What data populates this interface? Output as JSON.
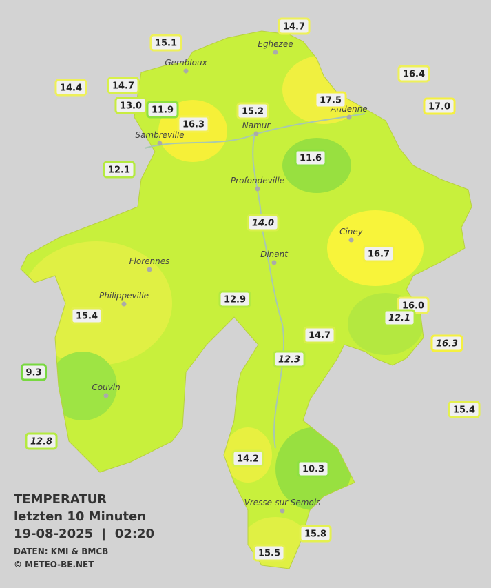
{
  "info": {
    "title": "TEMPERATUR",
    "period": "letzten 10 Minuten",
    "datetime": "19-08-2025  |  02:20",
    "source": "DATEN: KMI & BMCB",
    "copyright": "© METEO-BE.NET"
  },
  "cities": [
    "Eghezee",
    "Gembloux",
    "Andenne",
    "Namur",
    "Sambreville",
    "Profondeville",
    "Ciney",
    "Dinant",
    "Florennes",
    "Philippeville",
    "Couvin",
    "Vresse-sur-Semois"
  ],
  "stations": [
    {
      "label": "14.7",
      "border": "#eef05a"
    },
    {
      "label": "15.1",
      "border": "#eef05a"
    },
    {
      "label": "16.4",
      "border": "#eef05a"
    },
    {
      "label": "14.4",
      "border": "#eef05a"
    },
    {
      "label": "14.7",
      "border": "#d8f04a"
    },
    {
      "label": "13.0",
      "border": "#c8ec40"
    },
    {
      "label": "11.9",
      "border": "#8ee040"
    },
    {
      "label": "16.3",
      "border": "#f4f050"
    },
    {
      "label": "15.2",
      "border": "#e4f050"
    },
    {
      "label": "17.5",
      "border": "#f4f040"
    },
    {
      "label": "17.0",
      "border": "#f4f040"
    },
    {
      "label": "12.1",
      "border": "#b4ea40"
    },
    {
      "label": "11.6",
      "border": "#8ee040"
    },
    {
      "label": "14.0",
      "border": "#d8f04a",
      "italic": true
    },
    {
      "label": "16.7",
      "border": "#f4f040"
    },
    {
      "label": "12.9",
      "border": "#b4ea40"
    },
    {
      "label": "15.4",
      "border": "#e4f050"
    },
    {
      "label": "16.0",
      "border": "#eef05a"
    },
    {
      "label": "12.1",
      "border": "#b4ea40",
      "italic": true
    },
    {
      "label": "16.3",
      "border": "#f4f040",
      "italic": true
    },
    {
      "label": "14.7",
      "border": "#d8f04a"
    },
    {
      "label": "12.3",
      "border": "#b4ea40",
      "italic": true
    },
    {
      "label": "9.3",
      "border": "#78d840"
    },
    {
      "label": "15.4",
      "border": "#e4f050"
    },
    {
      "label": "12.8",
      "border": "#b4ea40",
      "italic": true
    },
    {
      "label": "14.2",
      "border": "#d8f04a"
    },
    {
      "label": "10.3",
      "border": "#8ee040"
    },
    {
      "label": "15.8",
      "border": "#e4f050"
    },
    {
      "label": "15.5",
      "border": "#e4f050"
    }
  ]
}
